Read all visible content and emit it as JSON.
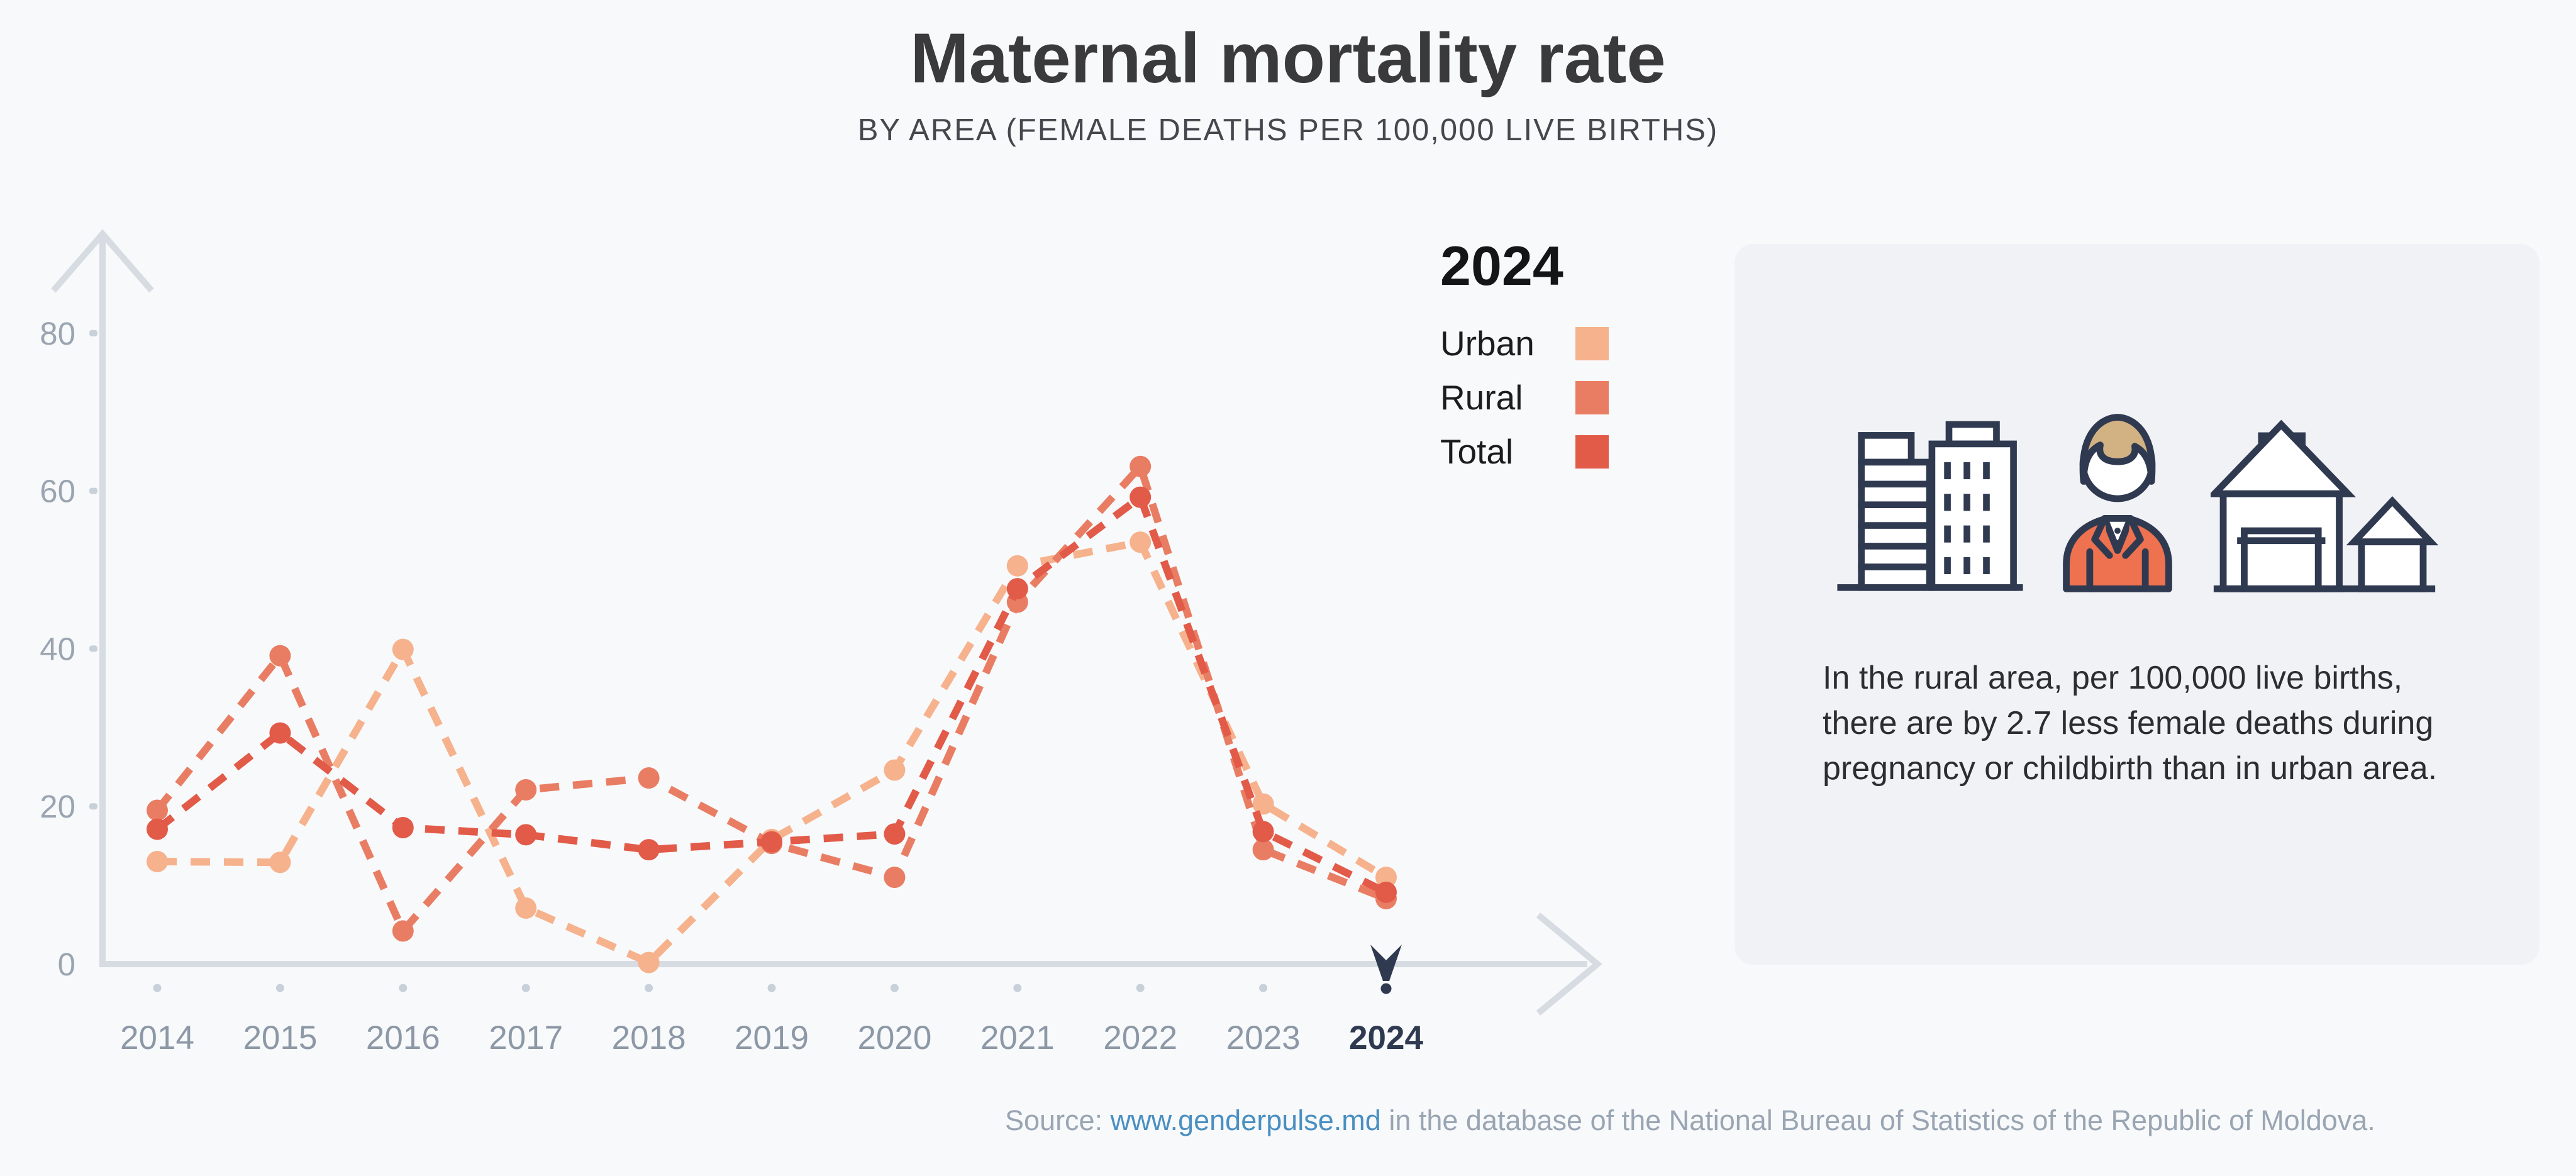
{
  "title": "Maternal mortality rate",
  "subtitle": "BY AREA (FEMALE DEATHS PER 100,000 LIVE BIRTHS)",
  "legend": {
    "title": "2024",
    "items": [
      {
        "label": "Urban",
        "color": "#f6b28c"
      },
      {
        "label": "Rural",
        "color": "#e97d63"
      },
      {
        "label": "Total",
        "color": "#e25a48"
      }
    ]
  },
  "chart_data": {
    "type": "line",
    "title": "Maternal mortality rate",
    "subtitle": "BY AREA (FEMALE DEATHS PER 100,000 LIVE BIRTHS)",
    "x": [
      2014,
      2015,
      2016,
      2017,
      2018,
      2019,
      2020,
      2021,
      2022,
      2023,
      2024
    ],
    "series": [
      {
        "name": "Urban",
        "color": "#f6b28c",
        "values": [
          13.0,
          12.9,
          39.9,
          7.1,
          0.2,
          15.8,
          24.6,
          50.5,
          53.5,
          20.3,
          11.0
        ]
      },
      {
        "name": "Rural",
        "color": "#e97d63",
        "values": [
          19.5,
          39.1,
          4.2,
          22.1,
          23.6,
          15.3,
          11.0,
          45.9,
          63.1,
          14.5,
          8.3
        ]
      },
      {
        "name": "Total",
        "color": "#e25a48",
        "values": [
          17.1,
          29.3,
          17.3,
          16.4,
          14.5,
          15.5,
          16.5,
          47.6,
          59.2,
          16.8,
          9.1
        ]
      }
    ],
    "xlabel": "",
    "ylabel": "",
    "y_ticks": [
      0,
      20,
      40,
      60,
      80
    ],
    "ylim": [
      0,
      88
    ],
    "grid": false,
    "line_style": "dashed",
    "legend_position": "top-right",
    "highlight_year": 2024,
    "annotation": "In the rural area, per 100,000 live births, there are by 2.7 less female deaths during pregnancy or childbirth than in urban area."
  },
  "panel": {
    "text": "In the rural area, per 100,000 live births, there are by 2.7 less female deaths during pregnancy or childbirth than in urban area.",
    "icons": [
      "city-buildings-icon",
      "woman-icon",
      "village-houses-icon"
    ]
  },
  "source": {
    "prefix": "Source: ",
    "link": "www.genderpulse.md",
    "suffix": " in the database of the National Bureau of Statistics of the Republic of Moldova."
  },
  "colors": {
    "background": "#f8f9fb",
    "panel": "#f0f2f6",
    "axis": "#d7dce3",
    "tick": "#c8d0d9",
    "tick_label": "#9aa5b1",
    "year_label": "#8d98a6",
    "navy": "#2f3a51",
    "urban": "#f6b28c",
    "rural": "#e97d63",
    "total": "#e25a48",
    "link": "#4a8fc1",
    "hair": "#d2b183",
    "jacket": "#ee7150"
  }
}
